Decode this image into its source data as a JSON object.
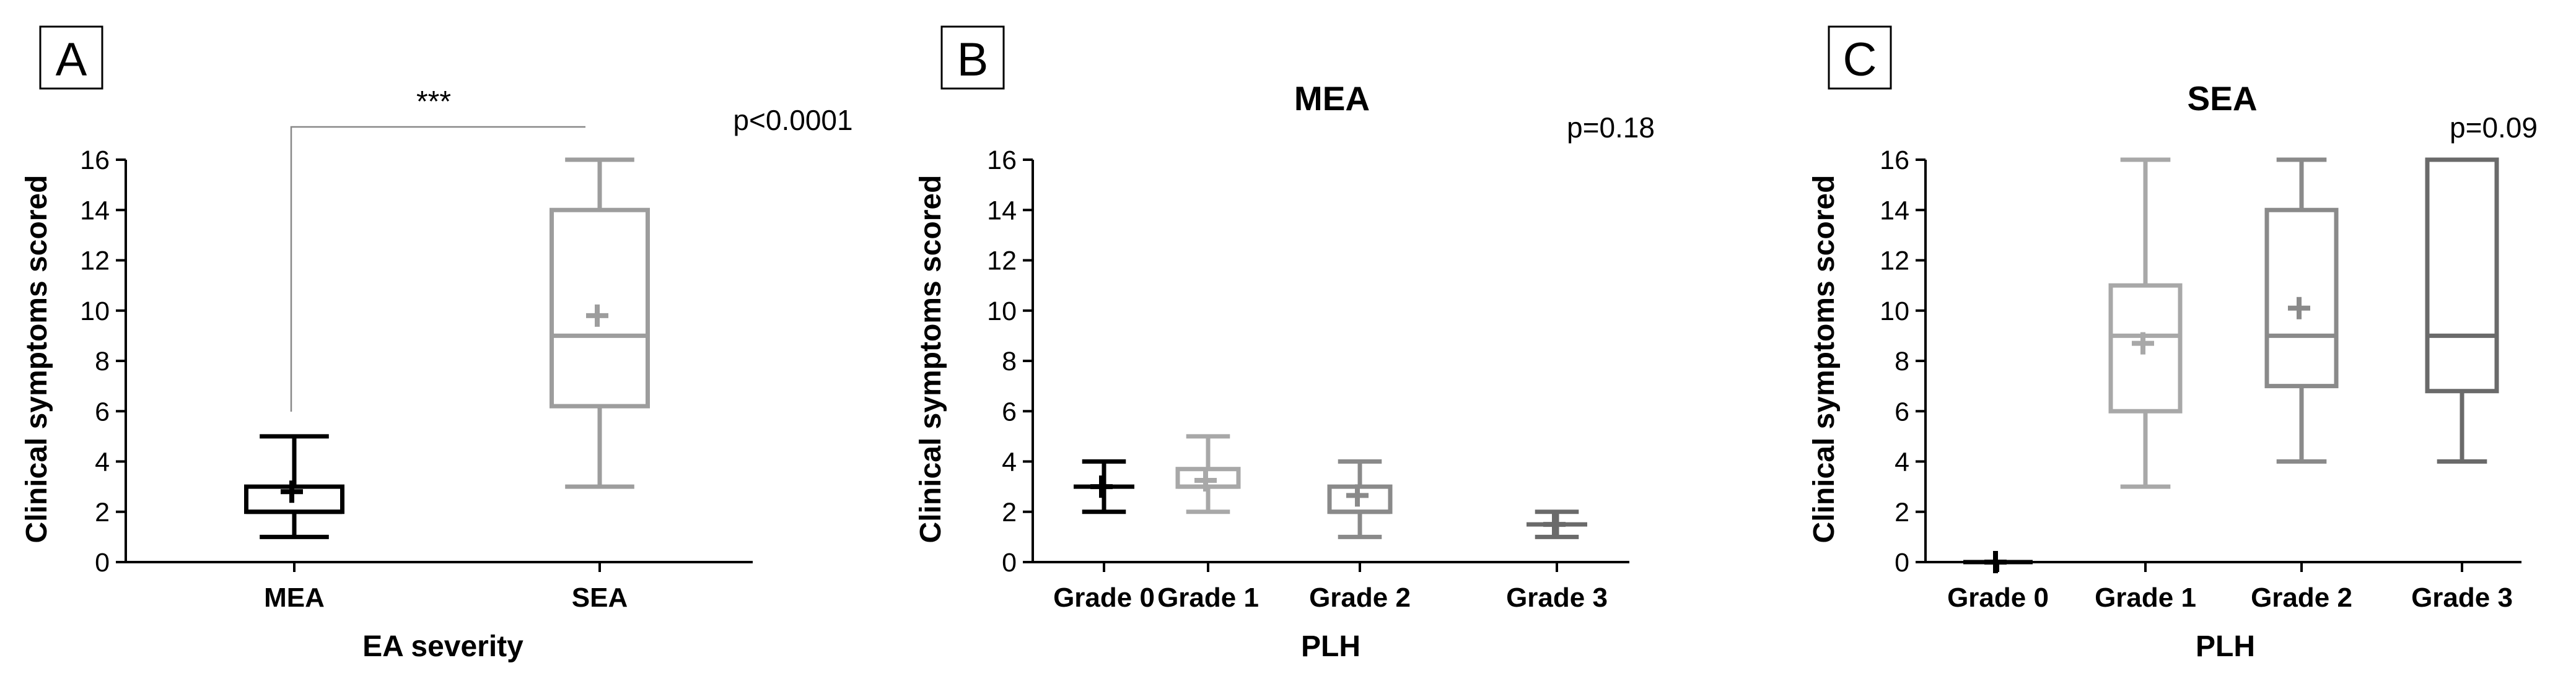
{
  "chart_data": [
    {
      "type": "box",
      "panel": "A",
      "title": "",
      "xlabel": "EA severity",
      "ylabel": "Clinical symptoms scored",
      "ylim": [
        0,
        16
      ],
      "yticks": [
        "0",
        "2",
        "4",
        "6",
        "8",
        "10",
        "12",
        "14",
        "16"
      ],
      "categories": [
        "MEA",
        "SEA"
      ],
      "boxes": [
        {
          "name": "MEA",
          "color": "#000000",
          "min": 1,
          "q1": 2,
          "median": 2,
          "q3": 3,
          "max": 5,
          "mean": 2.8
        },
        {
          "name": "SEA",
          "color": "#9d9d9d",
          "min": 3,
          "q1": 6.2,
          "median": 9,
          "q3": 14,
          "max": 16,
          "mean": 9.8
        }
      ],
      "p_value": "p<0.0001",
      "significance": "***"
    },
    {
      "type": "box",
      "panel": "B",
      "title": "MEA",
      "xlabel": "PLH",
      "ylabel": "Clinical symptoms scored",
      "ylim": [
        0,
        16
      ],
      "yticks": [
        "0",
        "2",
        "4",
        "6",
        "8",
        "10",
        "12",
        "14",
        "16"
      ],
      "categories": [
        "Grade 0",
        "Grade 1",
        "Grade 2",
        "Grade 3"
      ],
      "boxes": [
        {
          "name": "Grade 0",
          "color": "#000000",
          "min": 2,
          "q1": 3,
          "median": 3,
          "q3": 3,
          "max": 4,
          "mean": 3
        },
        {
          "name": "Grade 1",
          "color": "#a8a8a8",
          "min": 2,
          "q1": 3,
          "median": 3,
          "q3": 3.7,
          "max": 5,
          "mean": 3.25
        },
        {
          "name": "Grade 2",
          "color": "#8a8a8a",
          "min": 1,
          "q1": 2,
          "median": 2,
          "q3": 3,
          "max": 4,
          "mean": 2.65
        },
        {
          "name": "Grade 3",
          "color": "#6a6a6a",
          "min": 1,
          "q1": 1.5,
          "median": 1.5,
          "q3": 1.5,
          "max": 2,
          "mean": 1.5
        }
      ],
      "p_value": "p=0.18"
    },
    {
      "type": "box",
      "panel": "C",
      "title": "SEA",
      "xlabel": "PLH",
      "ylabel": "Clinical symptoms scored",
      "ylim": [
        0,
        16
      ],
      "yticks": [
        "0",
        "2",
        "4",
        "6",
        "8",
        "10",
        "12",
        "14",
        "16"
      ],
      "categories": [
        "Grade 0",
        "Grade 1",
        "Grade 2",
        "Grade 3"
      ],
      "boxes": [
        {
          "name": "Grade 0",
          "color": "#000000",
          "min": 0,
          "q1": 0,
          "median": 0,
          "q3": 0,
          "max": 0,
          "mean": 0
        },
        {
          "name": "Grade 1",
          "color": "#a8a8a8",
          "min": 3,
          "q1": 6,
          "median": 9,
          "q3": 11,
          "max": 16,
          "mean": 8.7
        },
        {
          "name": "Grade 2",
          "color": "#8a8a8a",
          "min": 4,
          "q1": 7,
          "median": 9,
          "q3": 14,
          "max": 16,
          "mean": 10.1
        },
        {
          "name": "Grade 3",
          "color": "#6a6a6a",
          "min": 4,
          "q1": 6.8,
          "median": 9,
          "q3": 16,
          "max": 16,
          "mean": null
        }
      ],
      "p_value": "p=0.09"
    }
  ]
}
